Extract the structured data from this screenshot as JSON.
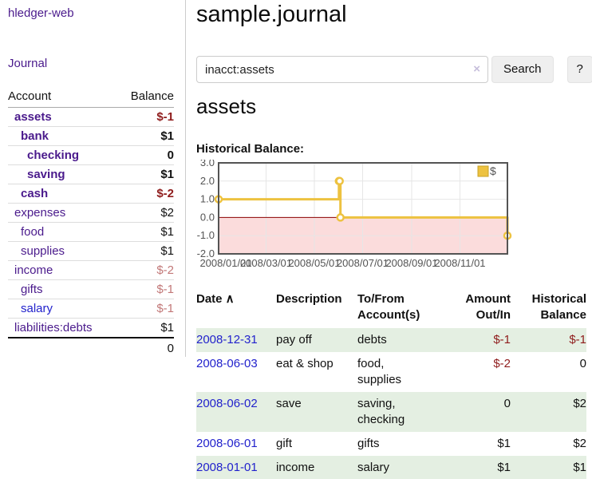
{
  "app": {
    "title": "hledger-web",
    "nav_journal": "Journal"
  },
  "sidebar": {
    "header": {
      "account": "Account",
      "balance": "Balance"
    },
    "accounts": [
      {
        "name": "assets",
        "indent": 1,
        "bold": true,
        "balance": "$-1",
        "balance_style": "neg-bold"
      },
      {
        "name": "bank",
        "indent": 2,
        "bold": true,
        "balance": "$1",
        "balance_style": "pos-bold"
      },
      {
        "name": "checking",
        "indent": 3,
        "bold": true,
        "balance": "0",
        "balance_style": "pos-bold"
      },
      {
        "name": "saving",
        "indent": 3,
        "bold": true,
        "balance": "$1",
        "balance_style": "pos-bold"
      },
      {
        "name": "cash",
        "indent": 2,
        "bold": true,
        "balance": "$-2",
        "balance_style": "neg-bold"
      },
      {
        "name": "expenses",
        "indent": 1,
        "bold": false,
        "balance": "$2",
        "balance_style": "pos"
      },
      {
        "name": "food",
        "indent": 2,
        "bold": false,
        "balance": "$1",
        "balance_style": "pos"
      },
      {
        "name": "supplies",
        "indent": 2,
        "bold": false,
        "balance": "$1",
        "balance_style": "pos"
      },
      {
        "name": "income",
        "indent": 1,
        "bold": false,
        "balance": "$-2",
        "balance_style": "neg-soft"
      },
      {
        "name": "gifts",
        "indent": 2,
        "bold": false,
        "balance": "$-1",
        "balance_style": "neg-soft"
      },
      {
        "name": "salary",
        "indent": 2,
        "bold": false,
        "balance": "$-1",
        "balance_style": "neg-soft",
        "link_style": "unvisited"
      },
      {
        "name": "liabilities:debts",
        "indent": 1,
        "bold": false,
        "balance": "$1",
        "balance_style": "pos"
      }
    ],
    "total": "0"
  },
  "header": {
    "title": "sample.journal"
  },
  "search": {
    "value": "inacct:assets",
    "clear_icon": "×",
    "button_label": "Search",
    "help_label": "?"
  },
  "account_page": {
    "heading": "assets",
    "chart_label": "Historical Balance:"
  },
  "chart_data": {
    "type": "line",
    "step": true,
    "title": "Historical Balance",
    "legend_position": "top-right",
    "ylim": [
      -2,
      3
    ],
    "xlim": [
      "2008-01-01",
      "2008-12-31"
    ],
    "yticks": [
      {
        "label": "3.0",
        "value": 3
      },
      {
        "label": "2.0",
        "value": 2
      },
      {
        "label": "1.0",
        "value": 1
      },
      {
        "label": "0.0",
        "value": 0
      },
      {
        "label": "-1.0",
        "value": -1
      },
      {
        "label": "-2.0",
        "value": -2
      }
    ],
    "xticks": [
      {
        "label": "2008/01/01",
        "date": "2008-01-01"
      },
      {
        "label": "2008/03/01",
        "date": "2008-03-01"
      },
      {
        "label": "2008/05/01",
        "date": "2008-05-01"
      },
      {
        "label": "2008/07/01",
        "date": "2008-07-01"
      },
      {
        "label": "2008/09/01",
        "date": "2008-09-01"
      },
      {
        "label": "2008/11/01",
        "date": "2008-11-01"
      }
    ],
    "series": [
      {
        "name": "$",
        "color": "#edc240",
        "points": [
          [
            "2008-01-01",
            1
          ],
          [
            "2008-06-01",
            2
          ],
          [
            "2008-06-02",
            2
          ],
          [
            "2008-06-03",
            0
          ],
          [
            "2008-12-31",
            -1
          ]
        ]
      }
    ],
    "colors": {
      "negative_fill": "#fbdcdc",
      "zero_line": "#8b0000",
      "grid": "#e6e6e6",
      "border": "#545454",
      "tick_text": "#545454",
      "legend_border": "#c9a227"
    }
  },
  "register": {
    "sort_icon": "∧",
    "columns": [
      {
        "line1": "Date",
        "line2": "",
        "align": "left",
        "sortable": true
      },
      {
        "line1": "Description",
        "line2": "",
        "align": "left"
      },
      {
        "line1": "To/From",
        "line2": "Account(s)",
        "align": "left"
      },
      {
        "line1": "Amount",
        "line2": "Out/In",
        "align": "right"
      },
      {
        "line1": "Historical",
        "line2": "Balance",
        "align": "right"
      }
    ],
    "rows": [
      {
        "date": "2008-12-31",
        "description": "pay off",
        "accounts": "debts",
        "amount": "$-1",
        "amount_neg": true,
        "balance": "$-1",
        "balance_neg": true,
        "shaded": true
      },
      {
        "date": "2008-06-03",
        "description": "eat & shop",
        "accounts": "food, supplies",
        "amount": "$-2",
        "amount_neg": true,
        "balance": "0",
        "balance_neg": false,
        "shaded": false
      },
      {
        "date": "2008-06-02",
        "description": "save",
        "accounts": "saving, checking",
        "amount": "0",
        "amount_neg": false,
        "balance": "$2",
        "balance_neg": false,
        "shaded": true
      },
      {
        "date": "2008-06-01",
        "description": "gift",
        "accounts": "gifts",
        "amount": "$1",
        "amount_neg": false,
        "balance": "$2",
        "balance_neg": false,
        "shaded": false
      },
      {
        "date": "2008-01-01",
        "description": "income",
        "accounts": "salary",
        "amount": "$1",
        "amount_neg": false,
        "balance": "$1",
        "balance_neg": false,
        "shaded": true
      }
    ]
  }
}
